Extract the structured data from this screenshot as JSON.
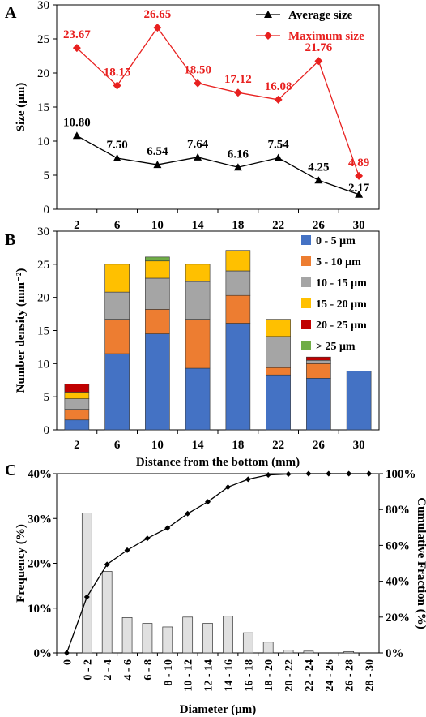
{
  "chart_data": [
    {
      "panel": "A",
      "type": "line",
      "categories": [
        "2",
        "6",
        "10",
        "14",
        "18",
        "22",
        "26",
        "30"
      ],
      "xlabel": "",
      "ylabel": "Size (μm)",
      "ylim": [
        0,
        30
      ],
      "yticks": [
        "0",
        "5",
        "10",
        "15",
        "20",
        "25",
        "30"
      ],
      "series": [
        {
          "name": "Average size",
          "color": "#000000",
          "marker": "triangle",
          "values": [
            10.8,
            7.5,
            6.54,
            7.64,
            6.16,
            7.54,
            4.25,
            2.17
          ],
          "labels": [
            "10.80",
            "7.50",
            "6.54",
            "7.64",
            "6.16",
            "7.54",
            "4.25",
            "2.17"
          ]
        },
        {
          "name": "Maximum size",
          "color": "#e8201f",
          "marker": "diamond",
          "values": [
            23.67,
            18.15,
            26.65,
            18.5,
            17.12,
            16.08,
            21.76,
            4.89
          ],
          "labels": [
            "23.67",
            "18.15",
            "26.65",
            "18.50",
            "17.12",
            "16.08",
            "21.76",
            "4.89"
          ]
        }
      ],
      "legend": "top-right",
      "grid": false
    },
    {
      "panel": "B",
      "type": "bar",
      "stacked": true,
      "categories": [
        "2",
        "6",
        "10",
        "14",
        "18",
        "22",
        "26",
        "30"
      ],
      "xlabel": "Distance from the bottom (mm)",
      "ylabel": "Number density (mm⁻²)",
      "ylim": [
        0,
        30
      ],
      "yticks": [
        "0",
        "5",
        "10",
        "15",
        "20",
        "25",
        "30"
      ],
      "series": [
        {
          "name": "0 - 5 μm",
          "color": "#4472c4",
          "values": [
            1.5,
            11.5,
            14.5,
            9.3,
            16.1,
            8.3,
            7.8,
            8.9
          ]
        },
        {
          "name": "5 - 10 μm",
          "color": "#ed7d31",
          "values": [
            1.6,
            5.2,
            3.7,
            7.4,
            4.2,
            1.1,
            2.2,
            0
          ]
        },
        {
          "name": "10 - 15 μm",
          "color": "#a5a5a5",
          "values": [
            1.6,
            4.1,
            4.7,
            5.7,
            3.7,
            4.7,
            0.5,
            0
          ]
        },
        {
          "name": "15 - 20 μm",
          "color": "#ffc000",
          "values": [
            1.0,
            4.2,
            2.6,
            2.6,
            3.1,
            2.6,
            0,
            0
          ]
        },
        {
          "name": "20 - 25 μm",
          "color": "#c00000",
          "values": [
            1.2,
            0,
            0,
            0,
            0,
            0,
            0.5,
            0
          ]
        },
        {
          "name": "> 25 μm",
          "color": "#70ad47",
          "values": [
            0,
            0,
            0.6,
            0,
            0,
            0,
            0,
            0
          ]
        }
      ],
      "legend": "right",
      "grid": false
    },
    {
      "panel": "C",
      "type": "bar+line",
      "categories": [
        "0 - 2",
        "2 - 4",
        "4 - 6",
        "6 - 8",
        "8 - 10",
        "10 - 12",
        "12 - 14",
        "14 - 16",
        "16 - 18",
        "18 - 20",
        "20 - 22",
        "22 - 24",
        "24 - 26",
        "26 - 28",
        "28 - 30"
      ],
      "cumulative_x": [
        "0",
        "0 - 2",
        "2 - 4",
        "4 - 6",
        "6 - 8",
        "8 - 10",
        "10 - 12",
        "12 - 14",
        "14 - 16",
        "16 - 18",
        "18 - 20",
        "20 - 22",
        "22 - 24",
        "24 - 26",
        "26 - 28",
        "28 - 30"
      ],
      "xlabel": "Diameter (μm)",
      "ylabel": "Frequency (%)",
      "y2label": "Cumulative Fraction (%)",
      "ylim": [
        0,
        40
      ],
      "y2lim": [
        0,
        100
      ],
      "yticks": [
        "0%",
        "10%",
        "20%",
        "30%",
        "40%"
      ],
      "y2ticks": [
        "0%",
        "20%",
        "40%",
        "60%",
        "80%",
        "100%"
      ],
      "frequency": [
        31.2,
        18.2,
        7.9,
        6.6,
        5.8,
        8.0,
        6.6,
        8.2,
        4.5,
        2.4,
        0.6,
        0.4,
        0,
        0.3,
        0
      ],
      "cumulative": [
        0,
        31.2,
        49.4,
        57.3,
        63.9,
        69.7,
        77.7,
        84.3,
        92.5,
        96.9,
        99.3,
        99.8,
        100,
        100,
        100,
        100
      ],
      "bar_color": "#e0e0e0",
      "line_color": "#000000"
    }
  ],
  "panel_labels": [
    "A",
    "B",
    "C"
  ]
}
